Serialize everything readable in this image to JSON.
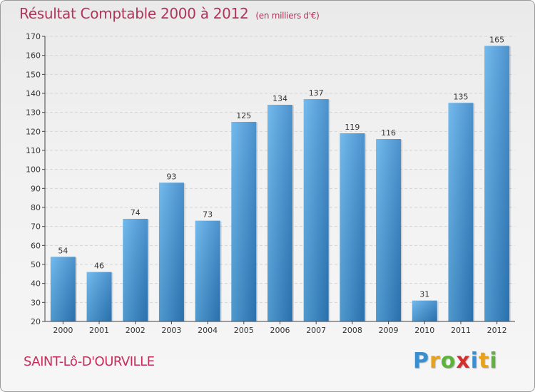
{
  "header": {
    "title": "Résultat Comptable 2000 à 2012",
    "unit": "(en milliers d'€)"
  },
  "footer": {
    "commune": "SAINT-Lô-D'OURVILLE",
    "logo_letters": [
      {
        "ch": "P",
        "color": "#3a8fd0"
      },
      {
        "ch": "r",
        "color": "#e8a21a"
      },
      {
        "ch": "o",
        "color": "#5db33b"
      },
      {
        "ch": "x",
        "color": "#d2302e"
      },
      {
        "ch": "i",
        "color": "#3a8fd0"
      },
      {
        "ch": "t",
        "color": "#e8a21a"
      },
      {
        "ch": "i",
        "color": "#5db33b"
      }
    ]
  },
  "colors": {
    "bar_light": "#5aaeea",
    "bar_dark": "#2f7fc4",
    "grid": "#d5d5d5",
    "axis": "#444444"
  },
  "chart_data": {
    "type": "bar",
    "title": "Résultat Comptable 2000 à 2012",
    "categories": [
      "2000",
      "2001",
      "2002",
      "2003",
      "2004",
      "2005",
      "2006",
      "2007",
      "2008",
      "2009",
      "2010",
      "2011",
      "2012"
    ],
    "values": [
      54,
      46,
      74,
      93,
      73,
      125,
      134,
      137,
      119,
      116,
      31,
      135,
      165
    ],
    "xlabel": "",
    "ylabel": "",
    "ylim": [
      20,
      170
    ],
    "yticks": [
      20,
      30,
      40,
      50,
      60,
      70,
      80,
      90,
      100,
      110,
      120,
      130,
      140,
      150,
      160,
      170
    ],
    "grid": true,
    "data_labels": true
  }
}
